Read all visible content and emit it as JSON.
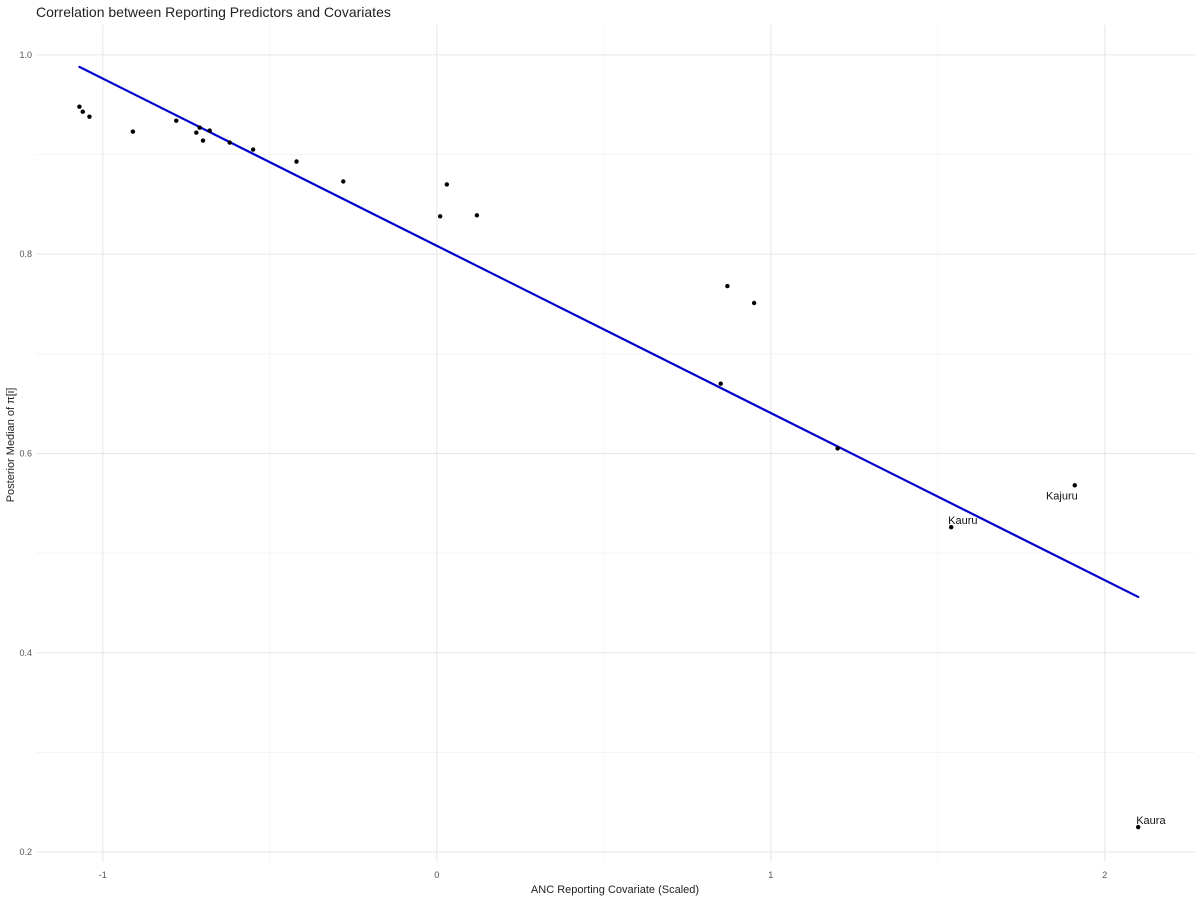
{
  "chart_data": {
    "type": "scatter",
    "title": "Correlation between Reporting Predictors and Covariates",
    "xlabel": "ANC Reporting Covariate (Scaled)",
    "ylabel": "Posterior Median of π[i]",
    "xlim": [
      -1.2,
      2.27
    ],
    "ylim": [
      0.19,
      1.03
    ],
    "xticks": [
      -1,
      0,
      1,
      2
    ],
    "xtick_labels": [
      "-1",
      "0",
      "1",
      "2"
    ],
    "yticks": [
      0.2,
      0.4,
      0.6,
      0.8,
      1.0
    ],
    "ytick_labels": [
      "0.2",
      "0.4",
      "0.6",
      "0.8",
      "1.0"
    ],
    "grid": true,
    "legend": "none",
    "point_color": "#000000",
    "line_color": "#0000cc",
    "points": [
      {
        "x": -1.07,
        "y": 0.948
      },
      {
        "x": -1.06,
        "y": 0.943
      },
      {
        "x": -1.04,
        "y": 0.938
      },
      {
        "x": -0.91,
        "y": 0.923
      },
      {
        "x": -0.78,
        "y": 0.934
      },
      {
        "x": -0.72,
        "y": 0.922
      },
      {
        "x": -0.71,
        "y": 0.927
      },
      {
        "x": -0.7,
        "y": 0.914
      },
      {
        "x": -0.68,
        "y": 0.924
      },
      {
        "x": -0.62,
        "y": 0.912
      },
      {
        "x": -0.55,
        "y": 0.905
      },
      {
        "x": -0.42,
        "y": 0.893
      },
      {
        "x": -0.28,
        "y": 0.873
      },
      {
        "x": 0.01,
        "y": 0.838
      },
      {
        "x": 0.03,
        "y": 0.87
      },
      {
        "x": 0.12,
        "y": 0.839
      },
      {
        "x": 0.85,
        "y": 0.67
      },
      {
        "x": 0.87,
        "y": 0.768
      },
      {
        "x": 0.95,
        "y": 0.751
      },
      {
        "x": 1.2,
        "y": 0.605
      },
      {
        "x": 1.54,
        "y": 0.526,
        "label": "Kauru"
      },
      {
        "x": 1.91,
        "y": 0.568,
        "label": "Kajuru"
      },
      {
        "x": 2.1,
        "y": 0.225,
        "label": "Kaura"
      }
    ],
    "fit_line": {
      "x": [
        -1.07,
        2.1
      ],
      "y": [
        0.988,
        0.456
      ]
    }
  }
}
